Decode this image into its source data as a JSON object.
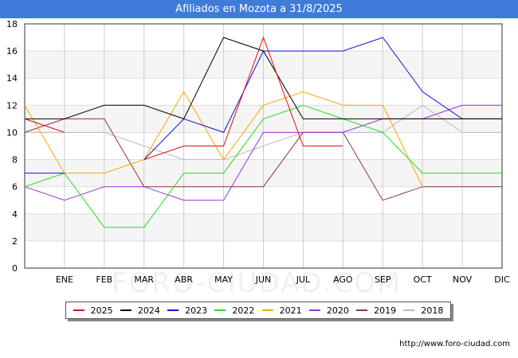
{
  "title": "Afiliados en Mozota a 31/8/2025",
  "footer_url": "http://www.foro-ciudad.com",
  "watermark": "FORO-CIUDAD.COM",
  "chart_data": {
    "type": "line",
    "title": "Afiliados en Mozota a 31/8/2025",
    "categories": [
      "",
      "ENE",
      "FEB",
      "MAR",
      "ABR",
      "MAY",
      "JUN",
      "JUL",
      "AGO",
      "SEP",
      "OCT",
      "NOV",
      "DIC"
    ],
    "ylim": [
      0,
      18
    ],
    "yticks": [
      0,
      2,
      4,
      6,
      8,
      10,
      12,
      14,
      16,
      18
    ],
    "grid": true,
    "legend_position": "bottom",
    "series": [
      {
        "name": "2025",
        "color": "#dd1111",
        "values": [
          11,
          10,
          null,
          null,
          null,
          null,
          null,
          null,
          null,
          null,
          null,
          null,
          null
        ]
      },
      {
        "name": "2025",
        "color": "#dd1111",
        "values": [
          null,
          null,
          null,
          8,
          9,
          9,
          17,
          9,
          9,
          null,
          null,
          null,
          null
        ]
      },
      {
        "name": "2024",
        "color": "#000000",
        "values": [
          11,
          11,
          12,
          12,
          11,
          17,
          16,
          11,
          11,
          11,
          11,
          11,
          11
        ]
      },
      {
        "name": "2023",
        "color": "#1111dd",
        "values": [
          7,
          7,
          null,
          8,
          11,
          10,
          16,
          16,
          16,
          17,
          13,
          11,
          11
        ]
      },
      {
        "name": "2022",
        "color": "#22dd22",
        "values": [
          6,
          7,
          3,
          3,
          7,
          7,
          11,
          12,
          11,
          10,
          7,
          7,
          7
        ]
      },
      {
        "name": "2021",
        "color": "#ffa500",
        "values": [
          12,
          7,
          7,
          8,
          13,
          8,
          12,
          13,
          12,
          12,
          6,
          null,
          null
        ]
      },
      {
        "name": "2020",
        "color": "#9933dd",
        "values": [
          6,
          5,
          6,
          6,
          5,
          5,
          10,
          10,
          10,
          11,
          11,
          12,
          12
        ]
      },
      {
        "name": "2019",
        "color": "#993333",
        "values": [
          10,
          11,
          11,
          6,
          6,
          6,
          6,
          10,
          10,
          5,
          6,
          6,
          6
        ]
      },
      {
        "name": "2018",
        "color": "#bbbbbb",
        "values": [
          10,
          10,
          10,
          9,
          8,
          8,
          9,
          10,
          10,
          10,
          12,
          10,
          10
        ]
      }
    ]
  },
  "legend": [
    {
      "label": "2025",
      "color": "#dd1111"
    },
    {
      "label": "2024",
      "color": "#000000"
    },
    {
      "label": "2023",
      "color": "#1111dd"
    },
    {
      "label": "2022",
      "color": "#22dd22"
    },
    {
      "label": "2021",
      "color": "#ffa500"
    },
    {
      "label": "2020",
      "color": "#9933dd"
    },
    {
      "label": "2019",
      "color": "#993333"
    },
    {
      "label": "2018",
      "color": "#bbbbbb"
    }
  ]
}
